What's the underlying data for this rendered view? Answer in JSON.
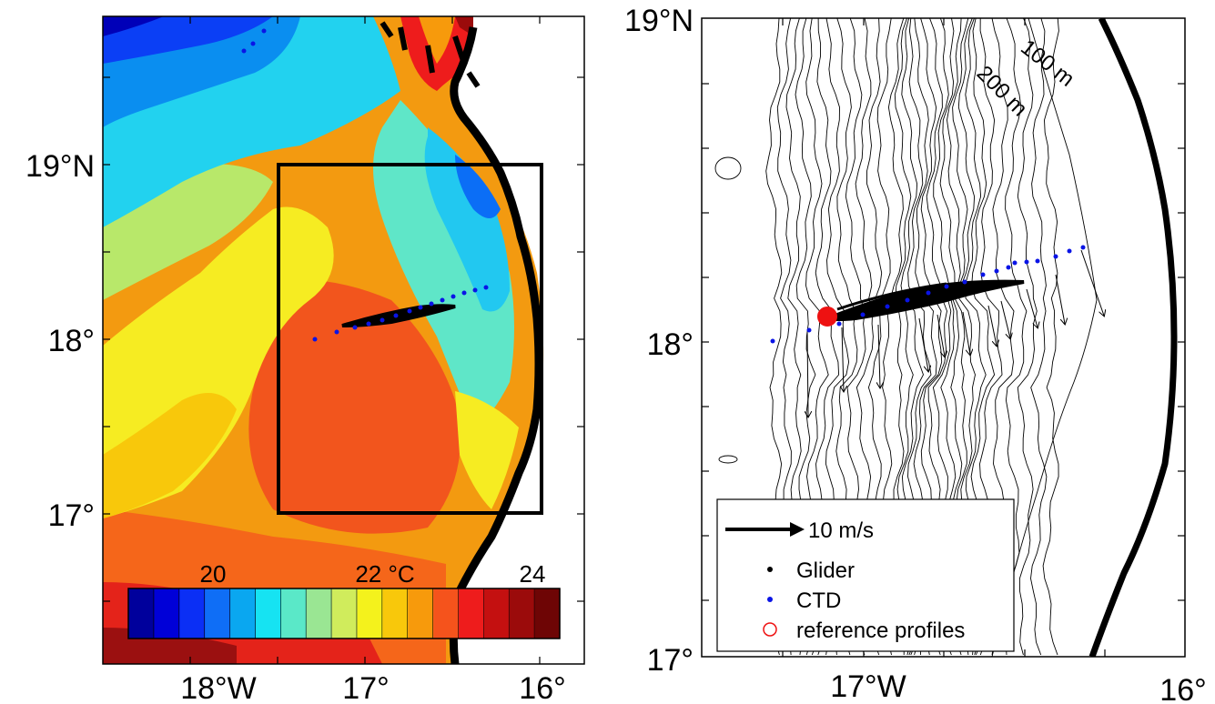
{
  "left_panel": {
    "x_ticks": [
      "18°W",
      "17°",
      "16°"
    ],
    "y_ticks": [
      "19°N",
      "18°",
      "17°"
    ],
    "colorbar": {
      "ticks": [
        "20",
        "22 °C",
        "24"
      ],
      "colors": [
        "#00009c",
        "#0000d8",
        "#0b2ff5",
        "#0f6ef6",
        "#0aa7f0",
        "#16e3f2",
        "#5ae8c8",
        "#9ae693",
        "#d0ec5c",
        "#f4f21c",
        "#f8c80b",
        "#f79a0c",
        "#f5531c",
        "#ee1c1c",
        "#c41010",
        "#9b0b0b",
        "#6e0505"
      ]
    }
  },
  "right_panel": {
    "x_ticks": [
      "17°W",
      "16°"
    ],
    "y_ticks": [
      "19°N",
      "18°",
      "17°"
    ],
    "contour_labels": [
      "100 m",
      "200 m"
    ],
    "legend": {
      "arrow_label": "10 m/s",
      "glider_label": "Glider",
      "ctd_label": "CTD",
      "reference_label": "reference profiles"
    }
  },
  "colors": {
    "glider": "#000000",
    "ctd": "#0a14e6",
    "reference": "#ee1111",
    "coastline": "#000000"
  }
}
